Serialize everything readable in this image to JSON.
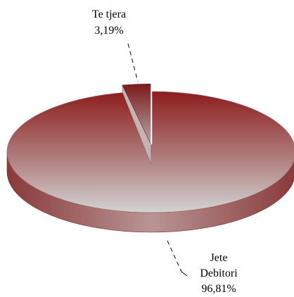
{
  "chart_data": {
    "type": "pie",
    "style": "3d-exploded",
    "slices": [
      {
        "label": "Jete Debitori",
        "label_lines": [
          "Jete",
          "Debitori"
        ],
        "value": 96.81,
        "value_label": "96,81%",
        "color": "#8b1a1a",
        "label_side": "bottom-right"
      },
      {
        "label": "Te tjera",
        "label_lines": [
          "Te tjera"
        ],
        "value": 3.19,
        "value_label": "3,19%",
        "color": "#7f1d1d",
        "label_side": "top",
        "exploded": true
      }
    ],
    "legend": "none"
  }
}
